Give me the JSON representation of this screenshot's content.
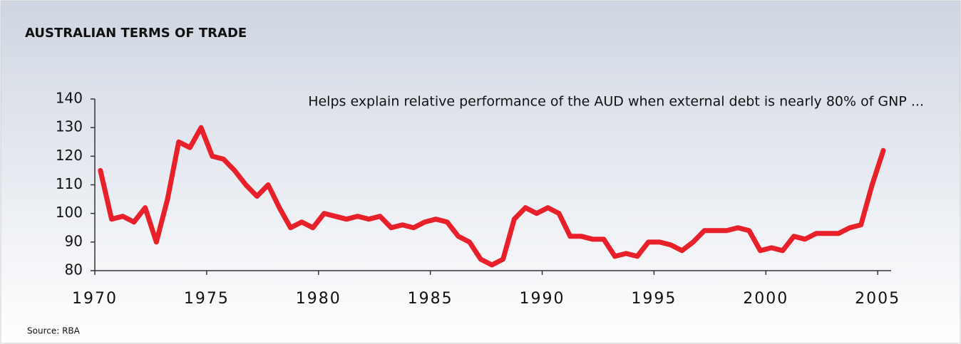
{
  "chart_data": {
    "type": "line",
    "title": "AUSTRALIAN TERMS OF TRADE",
    "subtitle": "Helps explain relative performance of the AUD when external debt is nearly 80% of GNP ...",
    "source": "Source:  RBA",
    "x": [
      1970.25,
      1970.75,
      1971.25,
      1971.75,
      1972.25,
      1972.75,
      1973.25,
      1973.75,
      1974.25,
      1974.75,
      1975.25,
      1975.75,
      1976.25,
      1976.75,
      1977.25,
      1977.75,
      1978.25,
      1978.75,
      1979.25,
      1979.75,
      1980.25,
      1980.75,
      1981.25,
      1981.75,
      1982.25,
      1982.75,
      1983.25,
      1983.75,
      1984.25,
      1984.75,
      1985.25,
      1985.75,
      1986.25,
      1986.75,
      1987.25,
      1987.75,
      1988.25,
      1988.75,
      1989.25,
      1989.75,
      1990.25,
      1990.75,
      1991.25,
      1991.75,
      1992.25,
      1992.75,
      1993.25,
      1993.75,
      1994.25,
      1994.75,
      1995.25,
      1995.75,
      1996.25,
      1996.75,
      1997.25,
      1997.75,
      1998.25,
      1998.75,
      1999.25,
      1999.75,
      2000.25,
      2000.75,
      2001.25,
      2001.75,
      2002.25,
      2002.75,
      2003.25,
      2003.75,
      2004.25,
      2004.75,
      2005.25
    ],
    "series": [
      {
        "color": "#e8202a",
        "values": [
          115,
          98,
          99,
          97,
          102,
          90,
          105,
          125,
          123,
          130,
          120,
          119,
          115,
          110,
          106,
          110,
          102,
          95,
          97,
          95,
          100,
          99,
          98,
          99,
          98,
          99,
          95,
          96,
          95,
          97,
          98,
          97,
          92,
          90,
          84,
          82,
          84,
          98,
          102,
          100,
          102,
          100,
          92,
          92,
          91,
          91,
          85,
          86,
          85,
          90,
          90,
          89,
          87,
          90,
          94,
          94,
          94,
          95,
          94,
          87,
          88,
          87,
          92,
          91,
          93,
          93,
          93,
          95,
          96,
          110,
          122
        ]
      }
    ],
    "xlim": [
      1970,
      2005.6
    ],
    "xticks": [
      1970,
      1975,
      1980,
      1985,
      1990,
      1995,
      2000,
      2005
    ],
    "ylim": [
      80,
      140
    ],
    "yticks": [
      80,
      90,
      100,
      110,
      120,
      130,
      140
    ]
  }
}
